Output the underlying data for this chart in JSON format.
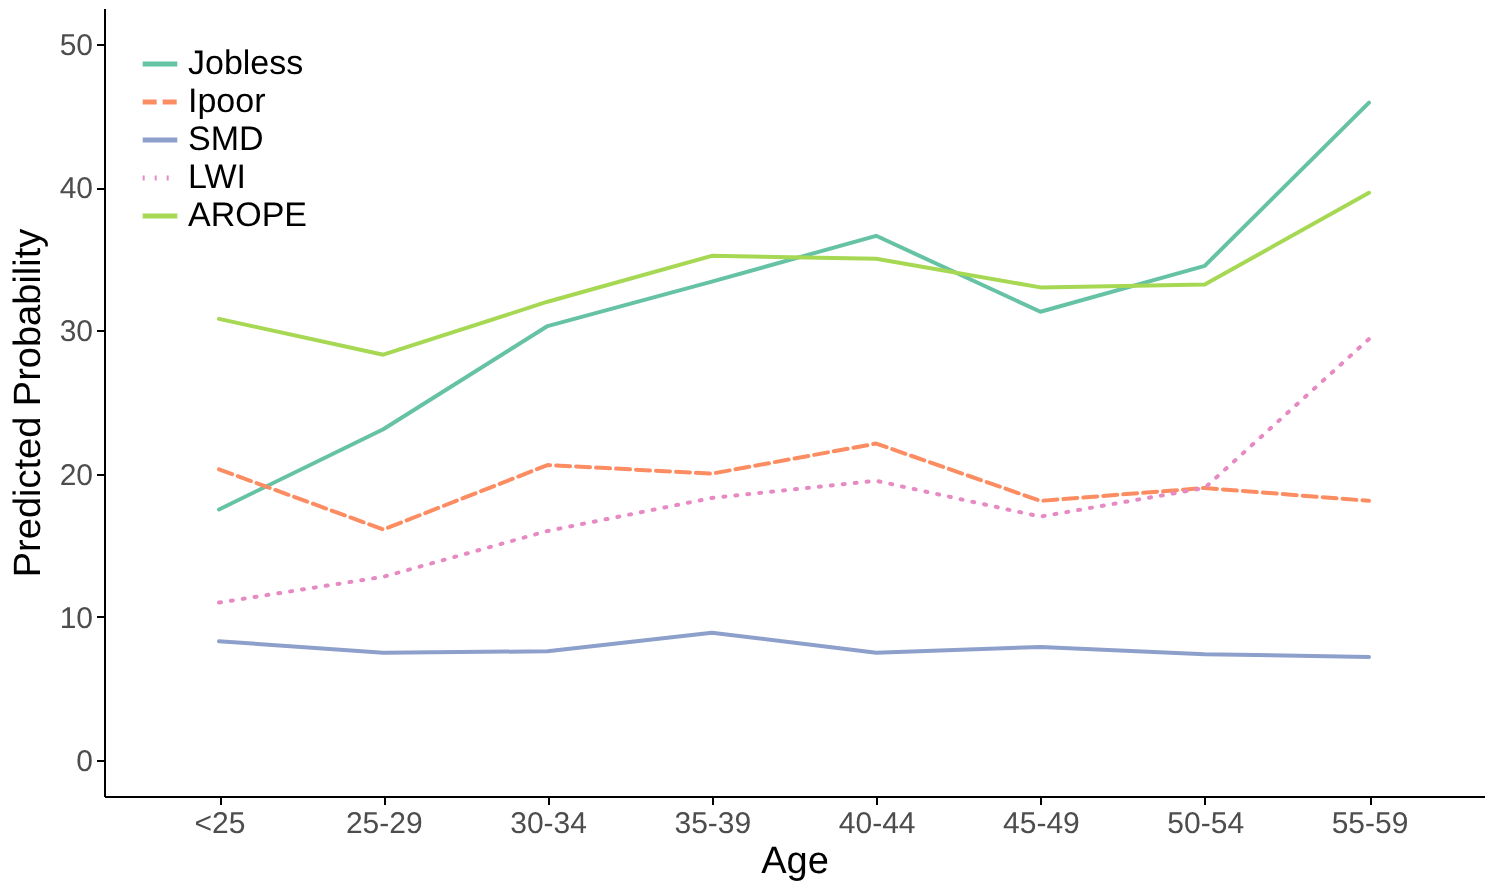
{
  "chart_data": {
    "type": "line",
    "xlabel": "Age",
    "ylabel": "Predicted Probability",
    "categories": [
      "<25",
      "25-29",
      "30-34",
      "35-39",
      "40-44",
      "45-49",
      "50-54",
      "55-59"
    ],
    "ylim": [
      -2.5,
      52.5
    ],
    "yticks": [
      0,
      10,
      20,
      30,
      40,
      50
    ],
    "grid": false,
    "legend": "top left",
    "series": [
      {
        "name": "Jobless",
        "color": "#66c2a5",
        "line_style": "solid",
        "values": [
          17.5,
          23.1,
          30.3,
          33.4,
          36.6,
          31.3,
          34.5,
          45.9
        ]
      },
      {
        "name": "Ipoor",
        "color": "#fc8d62",
        "line_style": "dashed",
        "values": [
          20.3,
          16.1,
          20.6,
          20.0,
          22.1,
          18.1,
          19.0,
          18.1
        ]
      },
      {
        "name": "SMD",
        "color": "#8da0cb",
        "line_style": "solid",
        "values": [
          8.3,
          7.5,
          7.6,
          8.9,
          7.5,
          7.9,
          7.4,
          7.2
        ]
      },
      {
        "name": "LWI",
        "color": "#e78ac3",
        "line_style": "dotted",
        "values": [
          11.0,
          12.8,
          16.0,
          18.3,
          19.5,
          17.0,
          19.0,
          29.4
        ]
      },
      {
        "name": "AROPE",
        "color": "#a6d854",
        "line_style": "solid",
        "values": [
          30.8,
          28.3,
          32.0,
          35.2,
          35.0,
          33.0,
          33.2,
          39.6
        ]
      }
    ]
  }
}
